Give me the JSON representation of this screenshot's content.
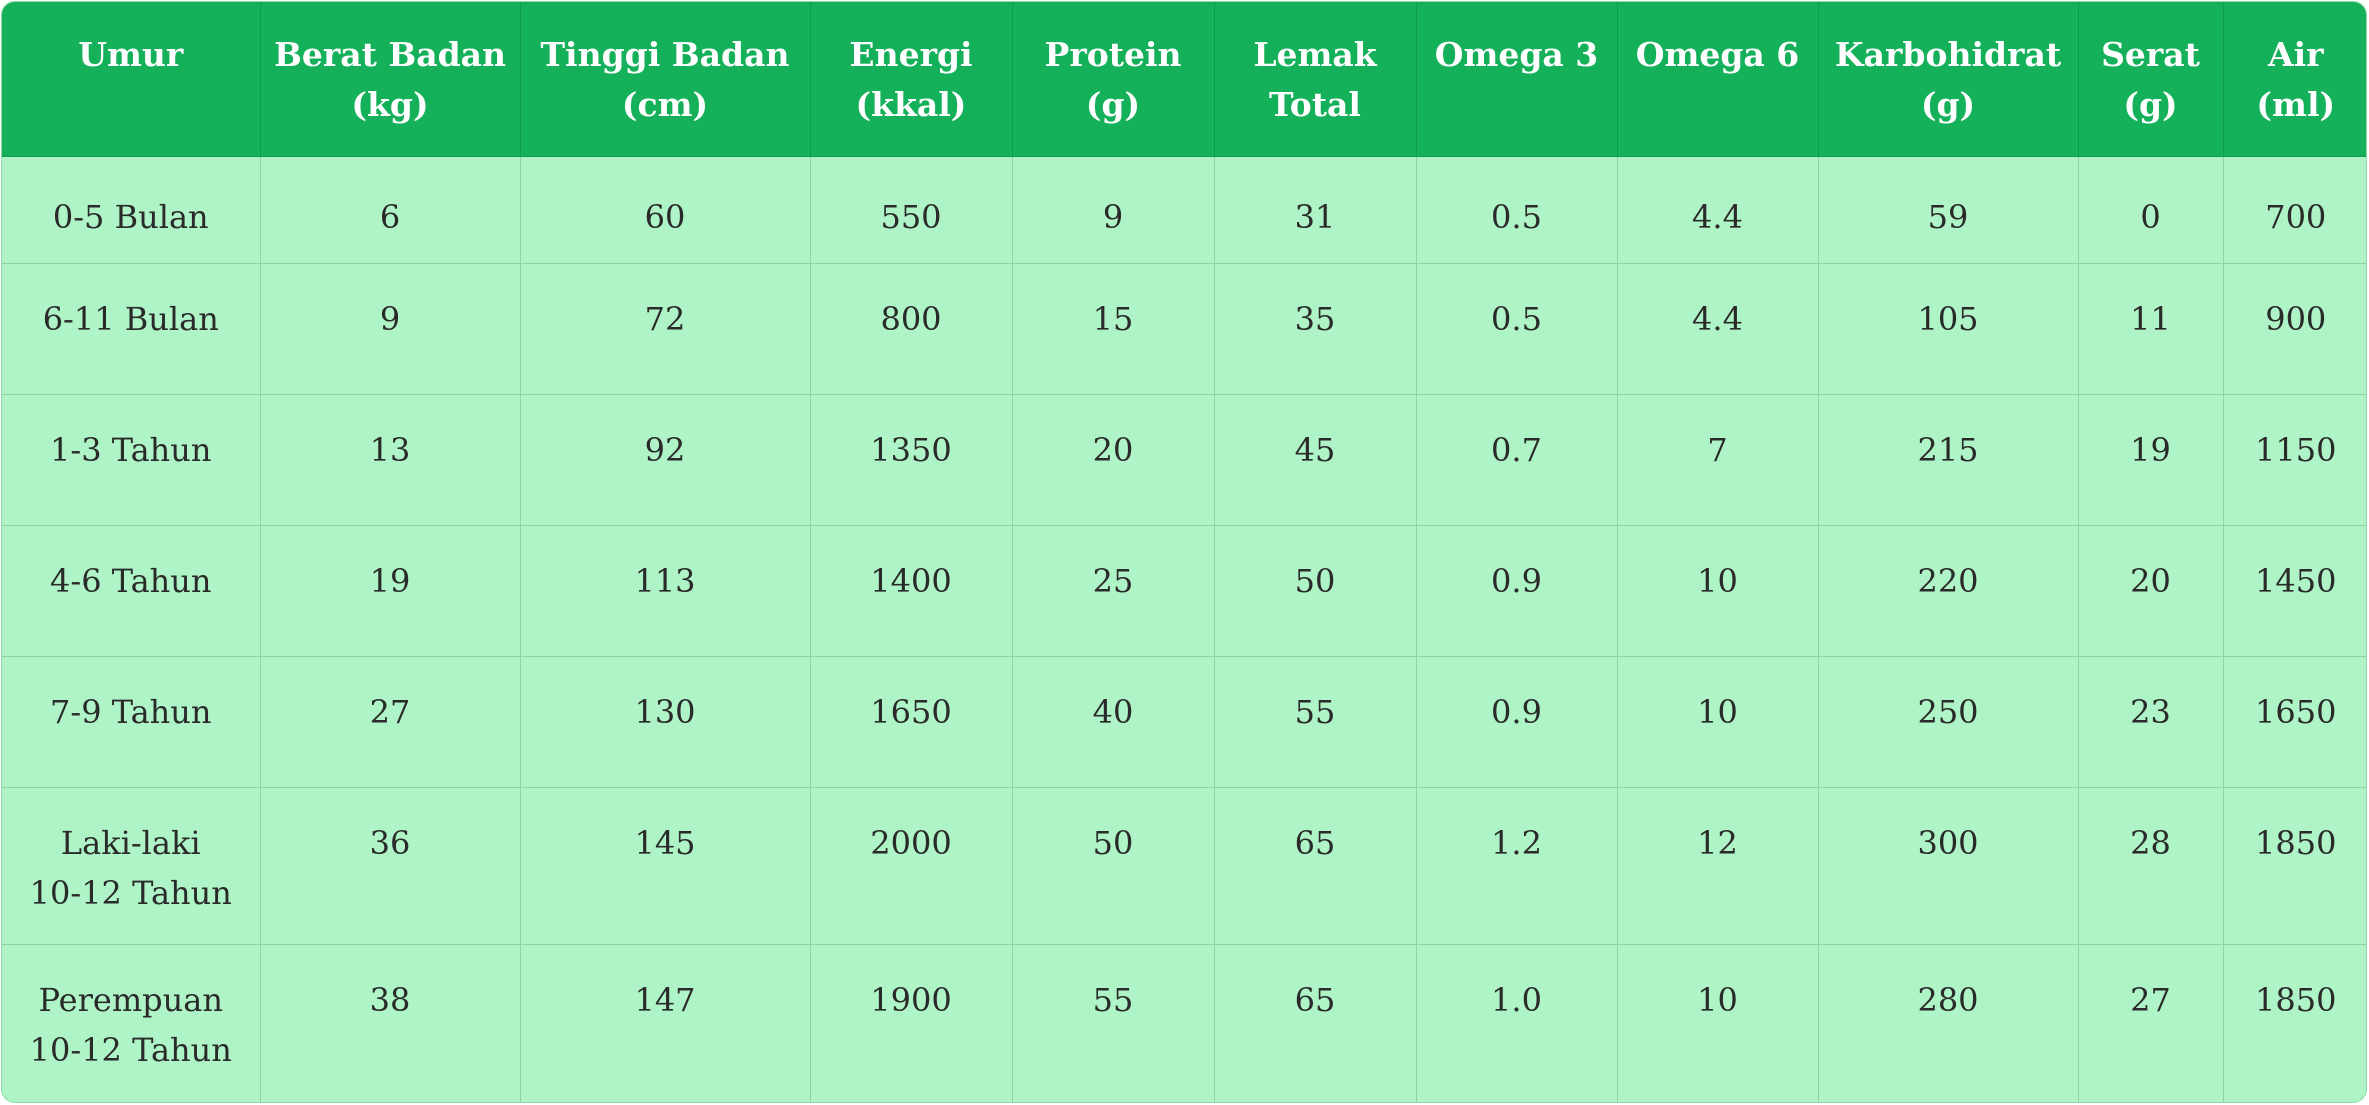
{
  "table": {
    "header": [
      {
        "l1": "Umur",
        "l2": ""
      },
      {
        "l1": "Berat Badan",
        "l2": "(kg)"
      },
      {
        "l1": "Tinggi Badan",
        "l2": "(cm)"
      },
      {
        "l1": "Energi",
        "l2": "(kkal)"
      },
      {
        "l1": "Protein",
        "l2": "(g)"
      },
      {
        "l1": "Lemak",
        "l2": "Total"
      },
      {
        "l1": "Omega 3",
        "l2": ""
      },
      {
        "l1": "Omega 6",
        "l2": ""
      },
      {
        "l1": "Karbohidrat",
        "l2": "(g)"
      },
      {
        "l1": "Serat",
        "l2": "(g)"
      },
      {
        "l1": "Air",
        "l2": "(ml)"
      }
    ],
    "rows": [
      {
        "age1": "0-5 Bulan",
        "age2": "",
        "cells": [
          "6",
          "60",
          "550",
          "9",
          "31",
          "0.5",
          "4.4",
          "59",
          "0",
          "700"
        ]
      },
      {
        "age1": "6-11 Bulan",
        "age2": "",
        "cells": [
          "9",
          "72",
          "800",
          "15",
          "35",
          "0.5",
          "4.4",
          "105",
          "11",
          "900"
        ]
      },
      {
        "age1": "1-3 Tahun",
        "age2": "",
        "cells": [
          "13",
          "92",
          "1350",
          "20",
          "45",
          "0.7",
          "7",
          "215",
          "19",
          "1150"
        ]
      },
      {
        "age1": "4-6 Tahun",
        "age2": "",
        "cells": [
          "19",
          "113",
          "1400",
          "25",
          "50",
          "0.9",
          "10",
          "220",
          "20",
          "1450"
        ]
      },
      {
        "age1": "7-9 Tahun",
        "age2": "",
        "cells": [
          "27",
          "130",
          "1650",
          "40",
          "55",
          "0.9",
          "10",
          "250",
          "23",
          "1650"
        ]
      },
      {
        "age1": "Laki-laki",
        "age2": "10-12 Tahun",
        "cells": [
          "36",
          "145",
          "2000",
          "50",
          "65",
          "1.2",
          "12",
          "300",
          "28",
          "1850"
        ]
      },
      {
        "age1": "Perempuan",
        "age2": "10-12 Tahun",
        "cells": [
          "38",
          "147",
          "1900",
          "55",
          "65",
          "1.0",
          "10",
          "280",
          "27",
          "1850"
        ]
      }
    ]
  },
  "colors": {
    "header_bg": "#15b05a",
    "header_text": "#ffffff",
    "body_bg": "#aff4c6",
    "body_text": "#2a2a2a"
  }
}
